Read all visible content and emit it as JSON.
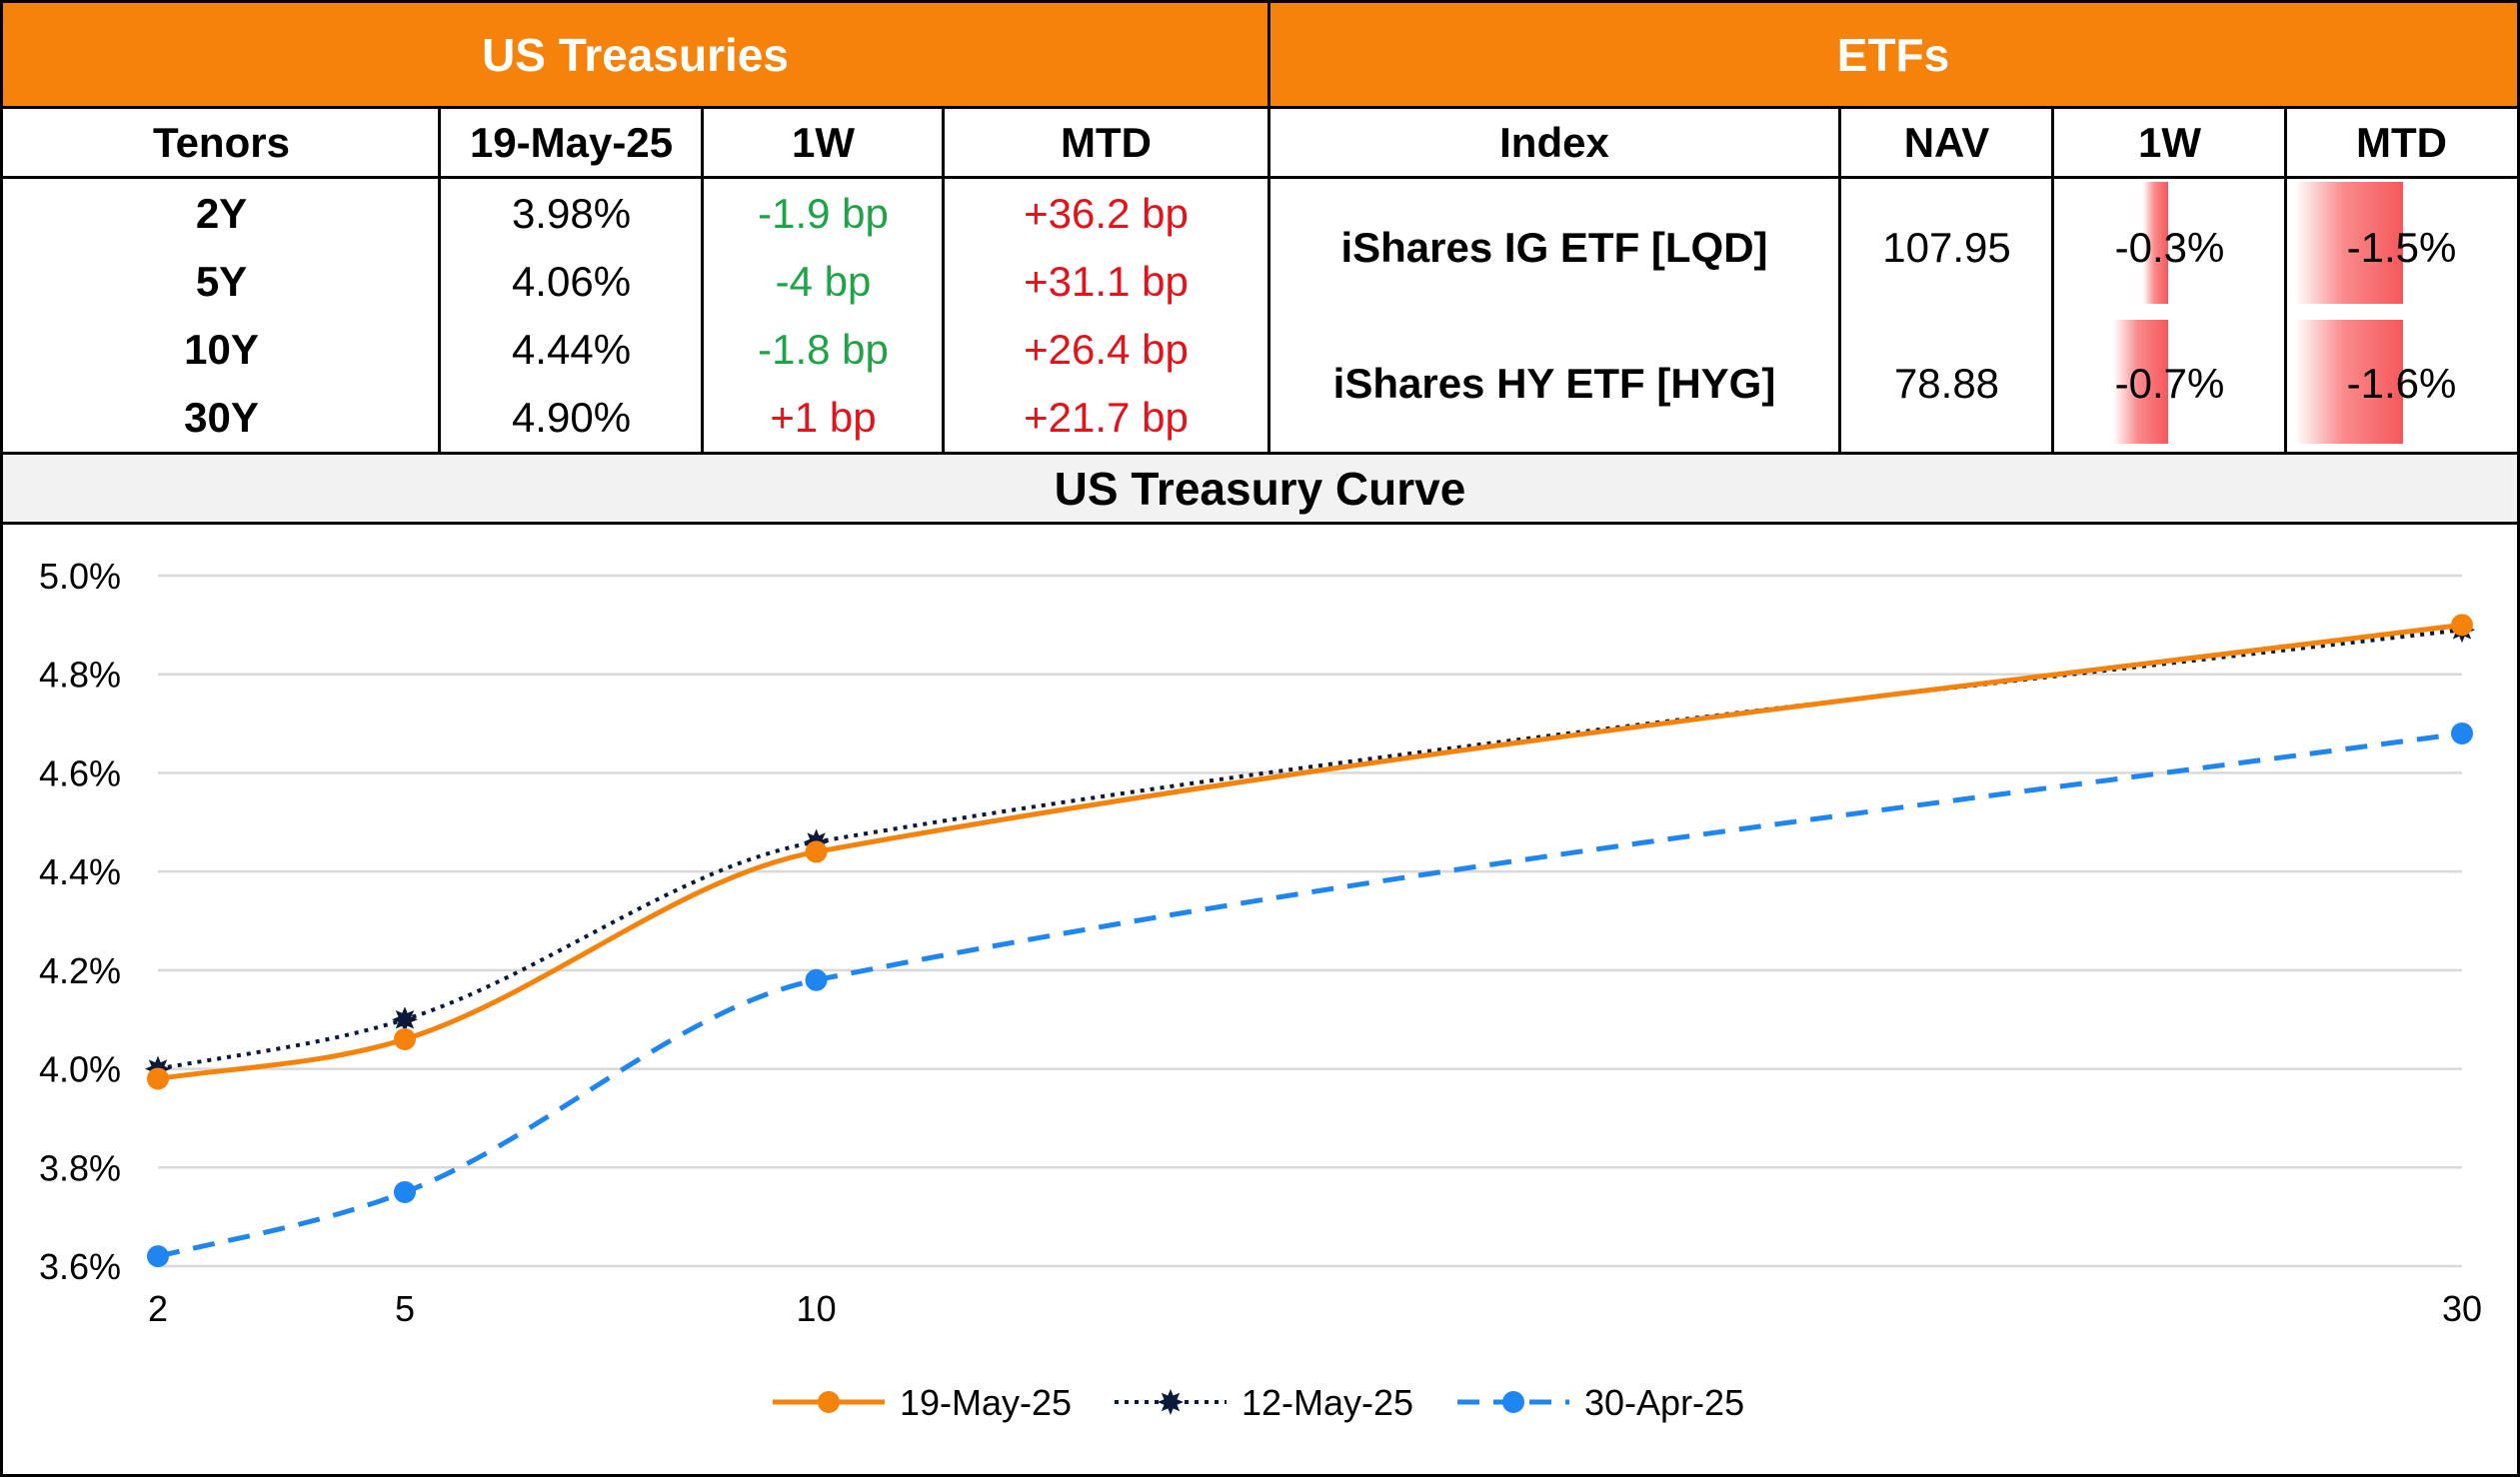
{
  "treasuries": {
    "title": "US Treasuries",
    "headers": [
      "Tenors",
      "19-May-25",
      "1W",
      "MTD"
    ],
    "rows": [
      {
        "tenor": "2Y",
        "yield": "3.98%",
        "w1": "-1.9 bp",
        "mtd": "+36.2 bp"
      },
      {
        "tenor": "5Y",
        "yield": "4.06%",
        "w1": "-4 bp",
        "mtd": "+31.1 bp"
      },
      {
        "tenor": "10Y",
        "yield": "4.44%",
        "w1": "-1.8 bp",
        "mtd": "+26.4 bp"
      },
      {
        "tenor": "30Y",
        "yield": "4.90%",
        "w1": "+1 bp",
        "mtd": "+21.7 bp"
      }
    ]
  },
  "etfs": {
    "title": "ETFs",
    "headers": [
      "Index",
      "NAV",
      "1W",
      "MTD"
    ],
    "rows": [
      {
        "index": "iShares IG ETF [LQD]",
        "nav": "107.95",
        "w1": "-0.3%",
        "mtd": "-1.5%",
        "w1_value": -0.3,
        "mtd_value": -1.5
      },
      {
        "index": "iShares HY ETF [HYG]",
        "nav": "78.88",
        "w1": "-0.7%",
        "mtd": "-1.6%",
        "w1_value": -0.7,
        "mtd_value": -1.6
      }
    ],
    "bar_color": "#f4585b"
  },
  "colors": {
    "header_bg": "#f5820a",
    "positive_bp": "#e3131b",
    "negative_bp": "#1ea447"
  },
  "chart_data": {
    "type": "line",
    "title": "US Treasury Curve",
    "x": [
      2,
      5,
      10,
      30
    ],
    "x_tick_labels": [
      "2",
      "5",
      "10",
      "30"
    ],
    "ylim": [
      3.6,
      5.0
    ],
    "y_ticks": [
      3.6,
      3.8,
      4.0,
      4.2,
      4.4,
      4.6,
      4.8,
      5.0
    ],
    "y_tick_labels": [
      "3.6%",
      "3.8%",
      "4.0%",
      "4.2%",
      "4.4%",
      "4.6%",
      "4.8%",
      "5.0%"
    ],
    "grid": true,
    "legend_position": "bottom",
    "series": [
      {
        "name": "19-May-25",
        "values": [
          3.98,
          4.06,
          4.44,
          4.9
        ],
        "color": "#f5820a",
        "style": "solid",
        "marker": "circle"
      },
      {
        "name": "12-May-25",
        "values": [
          4.0,
          4.1,
          4.46,
          4.89
        ],
        "color": "#0b1a3b",
        "style": "dotted",
        "marker": "star"
      },
      {
        "name": "30-Apr-25",
        "values": [
          3.62,
          3.75,
          4.18,
          4.68
        ],
        "color": "#1f85f0",
        "style": "dashed",
        "marker": "circle"
      }
    ]
  }
}
